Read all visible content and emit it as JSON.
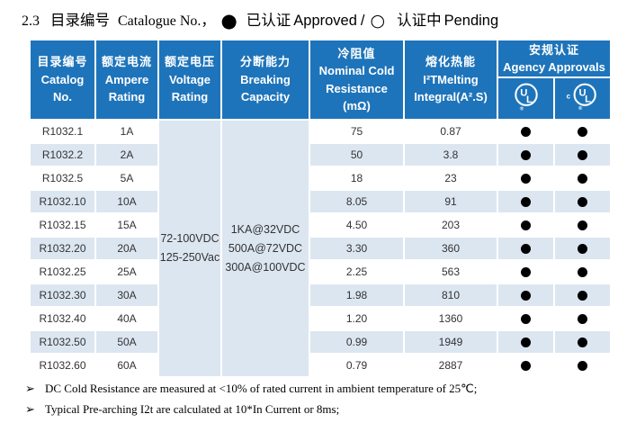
{
  "title": {
    "section": "2.3",
    "cn": "目录编号",
    "en": "Catalogue No.，",
    "approved_marker": "●",
    "approved_cn": "已认证",
    "approved_en": "Approved",
    "separator": "/",
    "pending_marker": "○",
    "pending_cn": "认证中",
    "pending_en": "Pending"
  },
  "table": {
    "headers": {
      "catalog": {
        "cn": "目录编号",
        "en1": "Catalog",
        "en2": "No."
      },
      "ampere": {
        "cn": "额定电流",
        "en1": "Ampere",
        "en2": "Rating"
      },
      "voltage": {
        "cn": "额定电压",
        "en1": "Voltage",
        "en2": "Rating"
      },
      "breaking": {
        "cn": "分断能力",
        "en1": "Breaking",
        "en2": "Capacity"
      },
      "resistance": {
        "cn": "冷阻值",
        "en1": "Nominal Cold",
        "en2": "Resistance",
        "en3": "(mΩ)"
      },
      "melting": {
        "cn": "熔化热能",
        "en1": "I²TMelting",
        "en2": "Integral(A².S)"
      },
      "agency": {
        "cn": "安规认证",
        "en": "Agency Approvals",
        "ul_icon": "UL",
        "cul_icon": "cUL"
      }
    },
    "merged": {
      "voltage_rating": [
        "72-100VDC",
        "125-250Vac"
      ],
      "breaking_capacity": [
        "1KA@32VDC",
        "500A@72VDC",
        "300A@100VDC"
      ]
    },
    "approved_symbol": "●",
    "rows": [
      {
        "catalog": "R1032.1",
        "ampere": "1A",
        "resistance": "75",
        "melting": "0.87",
        "ul": "●",
        "cul": "●"
      },
      {
        "catalog": "R1032.2",
        "ampere": "2A",
        "resistance": "50",
        "melting": "3.8",
        "ul": "●",
        "cul": "●"
      },
      {
        "catalog": "R1032.5",
        "ampere": "5A",
        "resistance": "18",
        "melting": "23",
        "ul": "●",
        "cul": "●"
      },
      {
        "catalog": "R1032.10",
        "ampere": "10A",
        "resistance": "8.05",
        "melting": "91",
        "ul": "●",
        "cul": "●"
      },
      {
        "catalog": "R1032.15",
        "ampere": "15A",
        "resistance": "4.50",
        "melting": "203",
        "ul": "●",
        "cul": "●"
      },
      {
        "catalog": "R1032.20",
        "ampere": "20A",
        "resistance": "3.30",
        "melting": "360",
        "ul": "●",
        "cul": "●"
      },
      {
        "catalog": "R1032.25",
        "ampere": "25A",
        "resistance": "2.25",
        "melting": "563",
        "ul": "●",
        "cul": "●"
      },
      {
        "catalog": "R1032.30",
        "ampere": "30A",
        "resistance": "1.98",
        "melting": "810",
        "ul": "●",
        "cul": "●"
      },
      {
        "catalog": "R1032.40",
        "ampere": "40A",
        "resistance": "1.20",
        "melting": "1360",
        "ul": "●",
        "cul": "●"
      },
      {
        "catalog": "R1032.50",
        "ampere": "50A",
        "resistance": "0.99",
        "melting": "1949",
        "ul": "●",
        "cul": "●"
      },
      {
        "catalog": "R1032.60",
        "ampere": "60A",
        "resistance": "0.79",
        "melting": "2887",
        "ul": "●",
        "cul": "●"
      }
    ]
  },
  "notes": [
    {
      "bullet": "➢",
      "text": "DC Cold Resistance are measured at <10% of rated current in ambient temperature of 25℃;"
    },
    {
      "bullet": "➢",
      "text": "Typical Pre-arching I2t are calculated at 10*In Current or 8ms;"
    }
  ],
  "colors": {
    "header_blue": "#1e74ba",
    "stripe_blue": "#dce6f1",
    "dot_black": "#000000",
    "text_dark": "#333333"
  }
}
